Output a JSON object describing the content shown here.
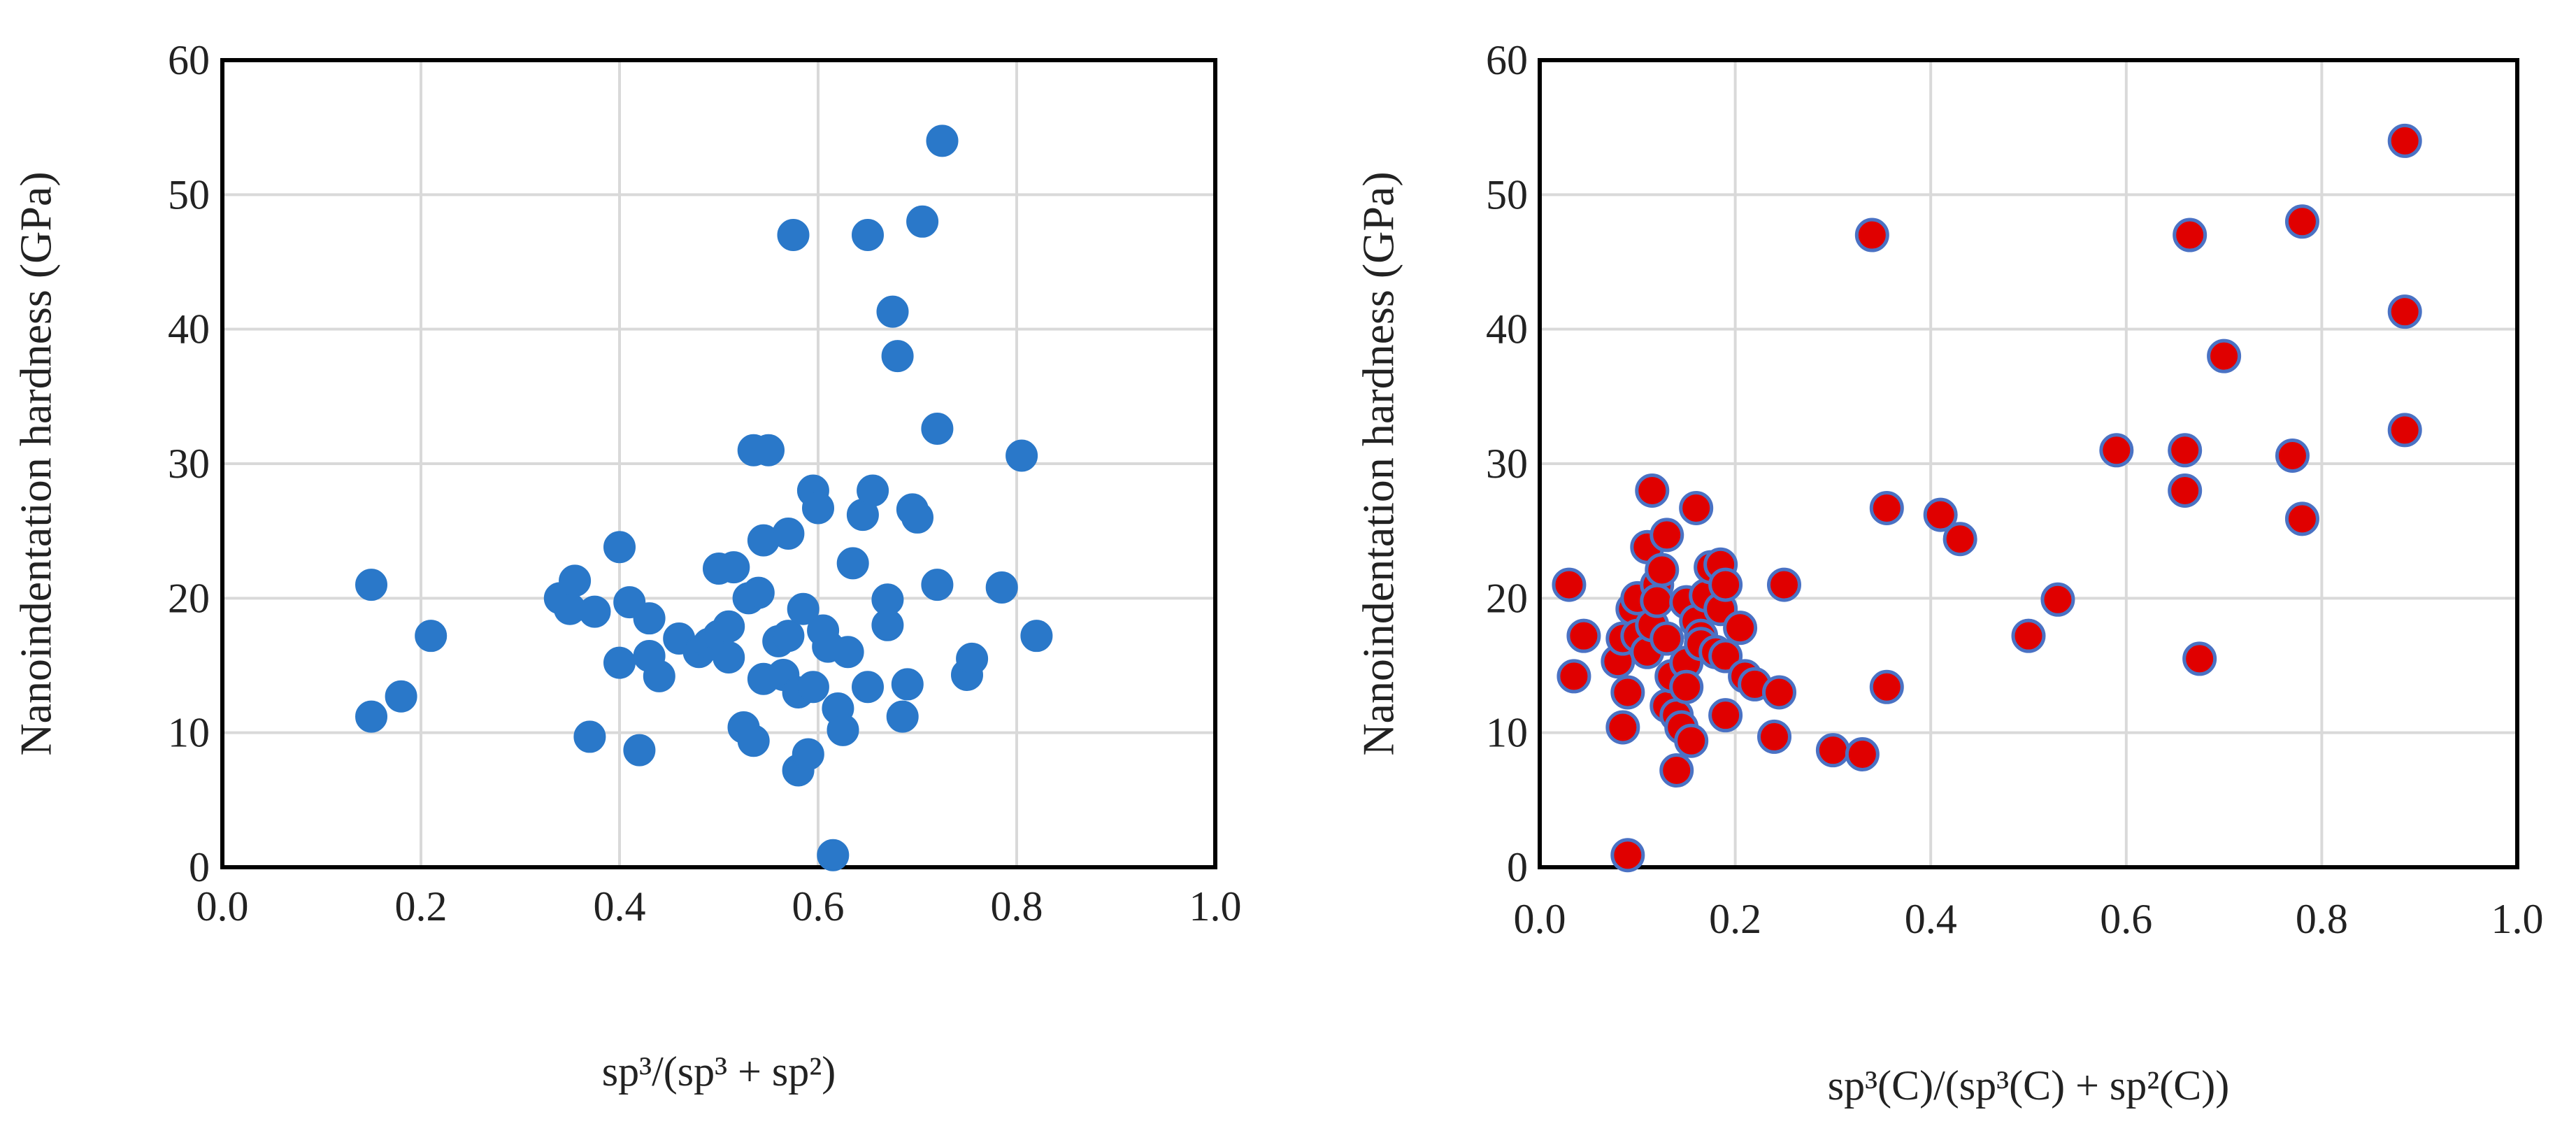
{
  "chart_data": [
    {
      "type": "scatter",
      "title": "",
      "xlabel": "sp³/(sp³ + sp²)",
      "ylabel": "Nanoindentation hardness (GPa)",
      "xlim": [
        0,
        1
      ],
      "ylim": [
        0,
        60
      ],
      "xticks": [
        "0.0",
        "0.2",
        "0.4",
        "0.6",
        "0.8",
        "1.0"
      ],
      "yticks": [
        "0",
        "10",
        "20",
        "30",
        "40",
        "50",
        "60"
      ],
      "grid": true,
      "marker": {
        "fill": "#2a78c9",
        "stroke": "#2a78c9"
      },
      "series": [
        {
          "points": [
            [
              0.15,
              21.0
            ],
            [
              0.15,
              11.2
            ],
            [
              0.18,
              12.7
            ],
            [
              0.21,
              17.2
            ],
            [
              0.34,
              20.0
            ],
            [
              0.35,
              19.2
            ],
            [
              0.355,
              21.3
            ],
            [
              0.37,
              9.7
            ],
            [
              0.375,
              19.0
            ],
            [
              0.4,
              23.8
            ],
            [
              0.4,
              15.2
            ],
            [
              0.41,
              19.7
            ],
            [
              0.42,
              8.7
            ],
            [
              0.43,
              15.7
            ],
            [
              0.43,
              18.5
            ],
            [
              0.44,
              14.2
            ],
            [
              0.46,
              17.0
            ],
            [
              0.48,
              16.0
            ],
            [
              0.49,
              16.6
            ],
            [
              0.5,
              22.2
            ],
            [
              0.5,
              17.2
            ],
            [
              0.51,
              15.6
            ],
            [
              0.51,
              17.9
            ],
            [
              0.515,
              22.3
            ],
            [
              0.525,
              10.4
            ],
            [
              0.53,
              20.0
            ],
            [
              0.535,
              9.4
            ],
            [
              0.535,
              31.0
            ],
            [
              0.54,
              20.4
            ],
            [
              0.545,
              24.3
            ],
            [
              0.545,
              14.0
            ],
            [
              0.55,
              31.0
            ],
            [
              0.56,
              16.8
            ],
            [
              0.565,
              14.3
            ],
            [
              0.57,
              17.2
            ],
            [
              0.57,
              24.8
            ],
            [
              0.575,
              47.0
            ],
            [
              0.58,
              7.2
            ],
            [
              0.58,
              13.0
            ],
            [
              0.585,
              19.2
            ],
            [
              0.59,
              8.4
            ],
            [
              0.595,
              28.0
            ],
            [
              0.595,
              13.4
            ],
            [
              0.6,
              26.7
            ],
            [
              0.605,
              17.6
            ],
            [
              0.61,
              16.4
            ],
            [
              0.615,
              0.9
            ],
            [
              0.62,
              11.8
            ],
            [
              0.625,
              10.2
            ],
            [
              0.63,
              16.0
            ],
            [
              0.635,
              22.6
            ],
            [
              0.645,
              26.2
            ],
            [
              0.65,
              13.4
            ],
            [
              0.65,
              47.0
            ],
            [
              0.655,
              28.0
            ],
            [
              0.67,
              18.0
            ],
            [
              0.67,
              19.9
            ],
            [
              0.675,
              41.3
            ],
            [
              0.68,
              38.0
            ],
            [
              0.685,
              11.2
            ],
            [
              0.69,
              13.6
            ],
            [
              0.695,
              26.6
            ],
            [
              0.7,
              26.0
            ],
            [
              0.705,
              48.0
            ],
            [
              0.72,
              21.0
            ],
            [
              0.72,
              32.6
            ],
            [
              0.725,
              54.0
            ],
            [
              0.75,
              14.3
            ],
            [
              0.755,
              15.5
            ],
            [
              0.785,
              20.8
            ],
            [
              0.805,
              30.6
            ],
            [
              0.82,
              17.2
            ]
          ]
        }
      ]
    },
    {
      "type": "scatter",
      "title": "",
      "xlabel": "sp³(C)/(sp³(C) + sp²(C))",
      "ylabel": "Nanoindentation hardness (GPa)",
      "xlim": [
        0,
        1
      ],
      "ylim": [
        0,
        60
      ],
      "xticks": [
        "0.0",
        "0.2",
        "0.4",
        "0.6",
        "0.8",
        "1.0"
      ],
      "yticks": [
        "0",
        "10",
        "20",
        "30",
        "40",
        "50",
        "60"
      ],
      "grid": true,
      "marker": {
        "fill": "#e00000",
        "stroke": "#4a72c4"
      },
      "series": [
        {
          "points": [
            [
              0.03,
              21.0
            ],
            [
              0.035,
              14.2
            ],
            [
              0.045,
              17.2
            ],
            [
              0.08,
              15.3
            ],
            [
              0.085,
              10.4
            ],
            [
              0.085,
              17.0
            ],
            [
              0.09,
              0.9
            ],
            [
              0.09,
              13.0
            ],
            [
              0.095,
              19.2
            ],
            [
              0.1,
              20.0
            ],
            [
              0.1,
              17.2
            ],
            [
              0.11,
              23.8
            ],
            [
              0.11,
              16.0
            ],
            [
              0.115,
              28.0
            ],
            [
              0.115,
              18.0
            ],
            [
              0.12,
              21.0
            ],
            [
              0.12,
              19.8
            ],
            [
              0.125,
              22.1
            ],
            [
              0.13,
              24.7
            ],
            [
              0.13,
              17.0
            ],
            [
              0.13,
              12.0
            ],
            [
              0.135,
              14.2
            ],
            [
              0.14,
              7.2
            ],
            [
              0.14,
              11.3
            ],
            [
              0.145,
              10.4
            ],
            [
              0.15,
              15.2
            ],
            [
              0.15,
              19.7
            ],
            [
              0.15,
              13.4
            ],
            [
              0.155,
              9.4
            ],
            [
              0.16,
              26.7
            ],
            [
              0.16,
              18.3
            ],
            [
              0.165,
              17.2
            ],
            [
              0.165,
              16.6
            ],
            [
              0.17,
              20.2
            ],
            [
              0.175,
              22.3
            ],
            [
              0.18,
              16.0
            ],
            [
              0.185,
              22.5
            ],
            [
              0.185,
              19.2
            ],
            [
              0.19,
              21.0
            ],
            [
              0.19,
              11.3
            ],
            [
              0.19,
              15.7
            ],
            [
              0.205,
              17.8
            ],
            [
              0.21,
              14.2
            ],
            [
              0.22,
              13.6
            ],
            [
              0.24,
              9.7
            ],
            [
              0.245,
              13.0
            ],
            [
              0.25,
              21.0
            ],
            [
              0.3,
              8.7
            ],
            [
              0.33,
              8.4
            ],
            [
              0.34,
              47.0
            ],
            [
              0.355,
              26.7
            ],
            [
              0.355,
              13.4
            ],
            [
              0.41,
              26.2
            ],
            [
              0.43,
              24.4
            ],
            [
              0.5,
              17.2
            ],
            [
              0.53,
              19.9
            ],
            [
              0.59,
              31.0
            ],
            [
              0.66,
              31.0
            ],
            [
              0.66,
              28.0
            ],
            [
              0.665,
              47.0
            ],
            [
              0.675,
              15.5
            ],
            [
              0.7,
              38.0
            ],
            [
              0.77,
              30.6
            ],
            [
              0.78,
              48.0
            ],
            [
              0.78,
              25.9
            ],
            [
              0.885,
              54.0
            ],
            [
              0.885,
              41.3
            ],
            [
              0.885,
              32.5
            ]
          ]
        }
      ]
    }
  ]
}
